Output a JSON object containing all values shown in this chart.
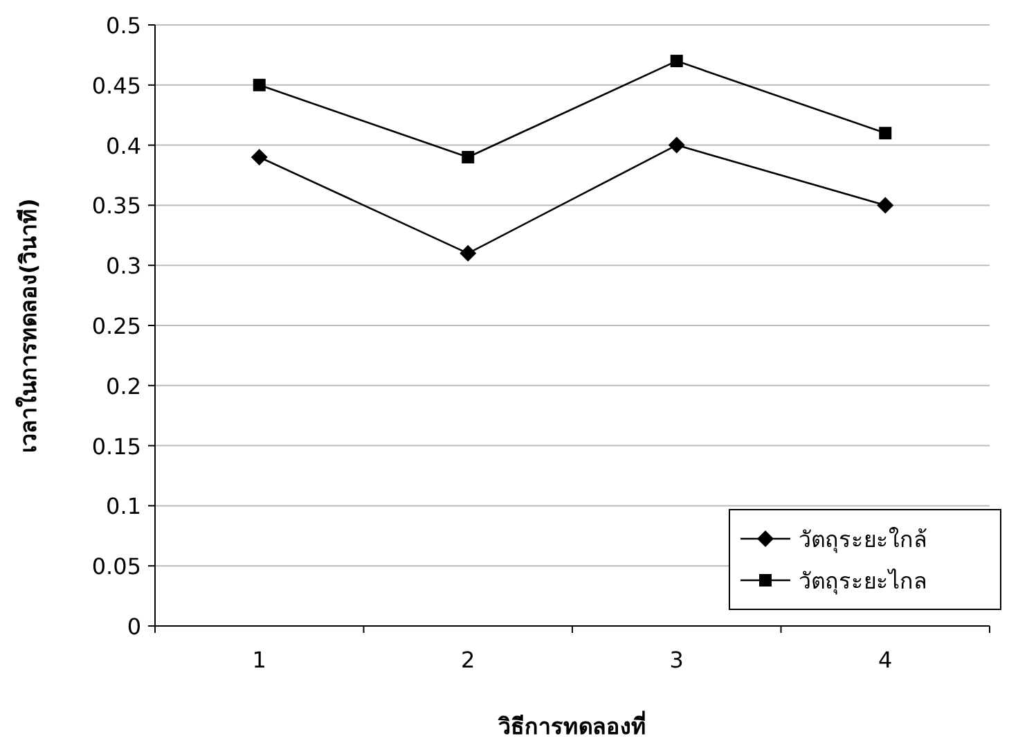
{
  "chart_data": {
    "type": "line",
    "xlabel": "วิธีการทดลองที่",
    "ylabel": "เวลาในการทดลอง(วินาที)",
    "categories": [
      "1",
      "2",
      "3",
      "4"
    ],
    "series": [
      {
        "name": "วัตถุระยะใกล้",
        "color": "#000000",
        "marker": "diamond",
        "values": [
          0.39,
          0.31,
          0.4,
          0.35
        ]
      },
      {
        "name": "วัตถุระยะไกล",
        "color": "#000000",
        "marker": "square",
        "values": [
          0.45,
          0.39,
          0.47,
          0.41
        ]
      }
    ],
    "ylim": [
      0,
      0.5
    ],
    "yticks": [
      0,
      0.05,
      0.1,
      0.15,
      0.2,
      0.25,
      0.3,
      0.35,
      0.4,
      0.45,
      0.5
    ],
    "grid": "y",
    "legend": "bottom right"
  }
}
